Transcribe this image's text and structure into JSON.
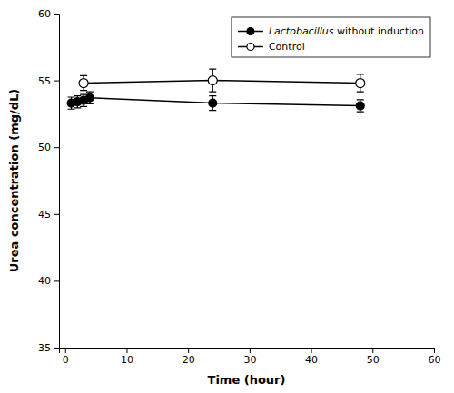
{
  "chart_data": {
    "type": "line",
    "xlabel": "Time (hour)",
    "ylabel": "Urea concentration (mg/dL)",
    "xlim": [
      -1,
      60
    ],
    "ylim": [
      35,
      60
    ],
    "xticks": [
      0,
      10,
      20,
      30,
      40,
      50,
      60
    ],
    "yticks": [
      35,
      40,
      45,
      50,
      55,
      60
    ],
    "legend": "upper right",
    "series": [
      {
        "name": "Lactobacillus without induction",
        "color": "black",
        "marker": "circle",
        "x": [
          1,
          2,
          3,
          4,
          24,
          48
        ],
        "values": [
          53.3,
          53.4,
          53.5,
          53.7,
          53.3,
          53.1
        ],
        "errors": [
          0.45,
          0.45,
          0.45,
          0.45,
          0.55,
          0.45
        ]
      },
      {
        "name": "Control",
        "color": "black",
        "marker": "circle-open",
        "x": [
          3,
          24,
          48
        ],
        "values": [
          54.8,
          55.0,
          54.8
        ],
        "errors": [
          0.55,
          0.85,
          0.65
        ]
      }
    ]
  }
}
